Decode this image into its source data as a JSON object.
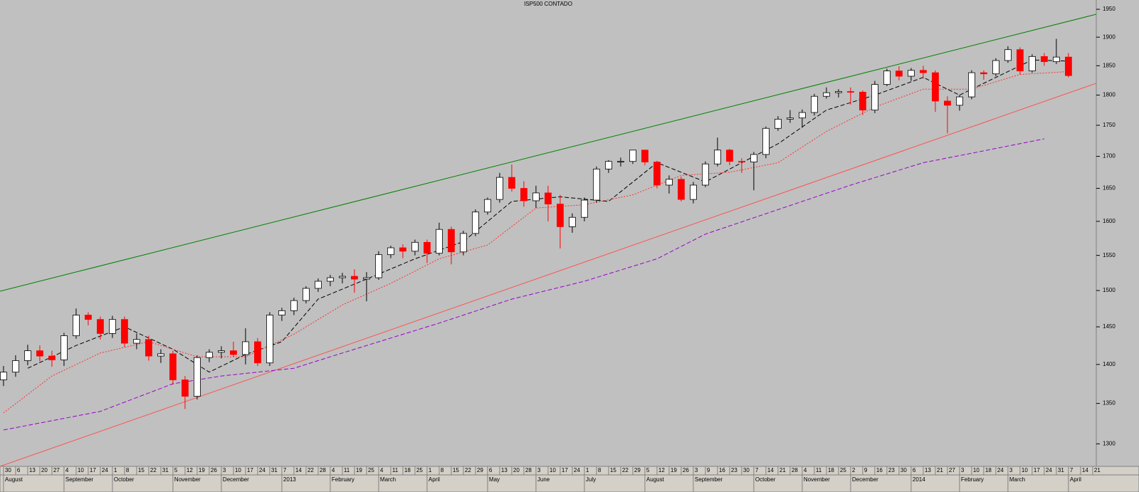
{
  "chart_data": {
    "type": "candlestick",
    "title": "ISP500 CONTADO",
    "log_scale": true,
    "xlim": [
      -0.29,
      90.3
    ],
    "ylim": [
      1273,
      1967
    ],
    "yticks": [
      1300,
      1350,
      1400,
      1450,
      1500,
      1550,
      1600,
      1650,
      1700,
      1750,
      1800,
      1850,
      1900,
      1950
    ],
    "up_color": "#ffffff",
    "down_color": "#ff0000",
    "x": [
      0,
      1,
      2,
      3,
      4,
      5,
      6,
      7,
      8,
      9,
      10,
      11,
      12,
      13,
      14,
      15,
      16,
      17,
      18,
      19,
      20,
      21,
      22,
      23,
      24,
      25,
      26,
      27,
      28,
      29,
      30,
      31,
      32,
      33,
      34,
      35,
      36,
      37,
      38,
      39,
      40,
      41,
      42,
      43,
      44,
      45,
      46,
      47,
      48,
      49,
      50,
      51,
      52,
      53,
      54,
      55,
      56,
      57,
      58,
      59,
      60,
      61,
      62,
      63,
      64,
      65,
      66,
      67,
      68,
      69,
      70,
      71,
      72,
      73,
      74,
      75,
      76,
      77,
      78,
      79,
      80,
      81,
      82,
      83,
      84,
      85,
      86,
      87,
      88
    ],
    "open": [
      1380,
      1390,
      1405,
      1418,
      1411,
      1406,
      1438,
      1466,
      1460,
      1441,
      1460,
      1428,
      1433,
      1411,
      1414,
      1380,
      1359,
      1409,
      1416,
      1418,
      1413,
      1430,
      1402,
      1466,
      1472,
      1486,
      1503,
      1513,
      1518,
      1520,
      1516,
      1518,
      1551,
      1561,
      1556,
      1569,
      1553,
      1588,
      1555,
      1582,
      1614,
      1633,
      1667,
      1650,
      1631,
      1643,
      1626,
      1592,
      1606,
      1632,
      1680,
      1692,
      1692,
      1710,
      1691,
      1655,
      1664,
      1633,
      1655,
      1688,
      1710,
      1692,
      1691,
      1703,
      1745,
      1760,
      1762,
      1771,
      1798,
      1804,
      1806,
      1805,
      1775,
      1818,
      1841,
      1832,
      1842,
      1838,
      1790,
      1783,
      1797,
      1838,
      1836,
      1859,
      1878,
      1841,
      1866,
      1857,
      1865
    ],
    "high": [
      1398,
      1412,
      1426,
      1425,
      1418,
      1442,
      1475,
      1470,
      1464,
      1465,
      1464,
      1441,
      1438,
      1420,
      1418,
      1385,
      1412,
      1420,
      1424,
      1430,
      1448,
      1435,
      1470,
      1476,
      1490,
      1506,
      1517,
      1522,
      1525,
      1530,
      1526,
      1556,
      1564,
      1566,
      1573,
      1573,
      1598,
      1592,
      1586,
      1618,
      1636,
      1674,
      1687,
      1661,
      1654,
      1654,
      1640,
      1612,
      1636,
      1684,
      1694,
      1698,
      1710,
      1710,
      1693,
      1670,
      1668,
      1660,
      1692,
      1730,
      1712,
      1697,
      1707,
      1748,
      1765,
      1775,
      1776,
      1802,
      1813,
      1810,
      1813,
      1808,
      1824,
      1845,
      1849,
      1846,
      1850,
      1842,
      1798,
      1800,
      1842,
      1842,
      1863,
      1884,
      1882,
      1870,
      1872,
      1897,
      1872
    ],
    "low": [
      1372,
      1384,
      1399,
      1404,
      1397,
      1398,
      1434,
      1452,
      1433,
      1435,
      1423,
      1420,
      1405,
      1402,
      1374,
      1343,
      1355,
      1403,
      1408,
      1410,
      1400,
      1398,
      1398,
      1458,
      1466,
      1482,
      1498,
      1506,
      1510,
      1497,
      1485,
      1515,
      1546,
      1546,
      1550,
      1539,
      1550,
      1537,
      1550,
      1578,
      1610,
      1628,
      1645,
      1622,
      1620,
      1600,
      1560,
      1583,
      1600,
      1628,
      1674,
      1684,
      1688,
      1686,
      1650,
      1642,
      1630,
      1627,
      1652,
      1684,
      1686,
      1674,
      1647,
      1697,
      1741,
      1754,
      1746,
      1766,
      1794,
      1796,
      1784,
      1767,
      1770,
      1815,
      1825,
      1824,
      1828,
      1772,
      1737,
      1774,
      1793,
      1826,
      1832,
      1855,
      1835,
      1838,
      1850,
      1853,
      1830
    ],
    "close": [
      1390,
      1405,
      1418,
      1411,
      1406,
      1438,
      1466,
      1460,
      1441,
      1460,
      1428,
      1433,
      1411,
      1414,
      1380,
      1359,
      1409,
      1416,
      1418,
      1413,
      1430,
      1402,
      1466,
      1472,
      1486,
      1503,
      1513,
      1518,
      1520,
      1516,
      1518,
      1551,
      1561,
      1556,
      1569,
      1553,
      1588,
      1555,
      1582,
      1614,
      1633,
      1667,
      1650,
      1631,
      1643,
      1626,
      1592,
      1606,
      1632,
      1680,
      1692,
      1692,
      1710,
      1691,
      1655,
      1664,
      1633,
      1655,
      1688,
      1710,
      1692,
      1691,
      1703,
      1745,
      1760,
      1762,
      1771,
      1798,
      1804,
      1806,
      1805,
      1775,
      1818,
      1841,
      1832,
      1842,
      1838,
      1790,
      1783,
      1797,
      1838,
      1836,
      1859,
      1878,
      1841,
      1866,
      1857,
      1865,
      1833
    ],
    "overlays": [
      {
        "color": "#000000",
        "style": "dashed",
        "x": [
          2,
          6,
          10,
          14,
          17,
          20,
          23,
          26,
          30,
          34,
          38,
          42,
          46,
          50,
          54,
          58,
          61,
          64,
          68,
          72,
          76,
          79,
          82,
          85,
          88
        ],
        "values": [
          1395,
          1425,
          1450,
          1420,
          1390,
          1413,
          1430,
          1488,
          1516,
          1545,
          1570,
          1630,
          1637,
          1630,
          1690,
          1660,
          1690,
          1720,
          1775,
          1800,
          1830,
          1800,
          1830,
          1860,
          1858
        ]
      },
      {
        "color": "#ff3030",
        "style": "dotted",
        "x": [
          0,
          4,
          8,
          12,
          16,
          20,
          24,
          28,
          32,
          36,
          40,
          44,
          48,
          52,
          56,
          60,
          64,
          68,
          72,
          76,
          80,
          84,
          88
        ],
        "values": [
          1338,
          1385,
          1415,
          1430,
          1410,
          1410,
          1440,
          1480,
          1510,
          1545,
          1565,
          1620,
          1625,
          1640,
          1670,
          1675,
          1690,
          1740,
          1780,
          1810,
          1810,
          1835,
          1840
        ]
      },
      {
        "color": "#9900cc",
        "style": "dashed",
        "x": [
          0,
          8,
          14,
          18,
          24,
          28,
          36,
          42,
          48,
          54,
          58,
          66,
          70,
          76,
          80,
          86
        ],
        "values": [
          1317,
          1340,
          1375,
          1385,
          1395,
          1415,
          1455,
          1488,
          1513,
          1545,
          1581,
          1630,
          1655,
          1690,
          1705,
          1728
        ]
      }
    ],
    "trendlines": [
      {
        "color": "#008000",
        "x": [
          -0.29,
          90.3
        ],
        "y": [
          1499,
          1941
        ]
      },
      {
        "color": "#ff5050",
        "x": [
          -0.29,
          90.3
        ],
        "y": [
          1273,
          1820
        ]
      }
    ],
    "xticks": [
      {
        "value": 0,
        "label": "30"
      },
      {
        "value": 1,
        "label": "6"
      },
      {
        "value": 2,
        "label": "13"
      },
      {
        "value": 3,
        "label": "20"
      },
      {
        "value": 4,
        "label": "27"
      },
      {
        "value": 5,
        "label": "4"
      },
      {
        "value": 6,
        "label": "10"
      },
      {
        "value": 7,
        "label": "17"
      },
      {
        "value": 8,
        "label": "24"
      },
      {
        "value": 9,
        "label": "1"
      },
      {
        "value": 10,
        "label": "8"
      },
      {
        "value": 11,
        "label": "15"
      },
      {
        "value": 12,
        "label": "22"
      },
      {
        "value": 13,
        "label": "31"
      },
      {
        "value": 14,
        "label": "5"
      },
      {
        "value": 15,
        "label": "12"
      },
      {
        "value": 16,
        "label": "19"
      },
      {
        "value": 17,
        "label": "26"
      },
      {
        "value": 18,
        "label": "3"
      },
      {
        "value": 19,
        "label": "10"
      },
      {
        "value": 20,
        "label": "17"
      },
      {
        "value": 21,
        "label": "24"
      },
      {
        "value": 22,
        "label": "31"
      },
      {
        "value": 23,
        "label": "7"
      },
      {
        "value": 24,
        "label": "14"
      },
      {
        "value": 25,
        "label": "22"
      },
      {
        "value": 26,
        "label": "28"
      },
      {
        "value": 27,
        "label": "4"
      },
      {
        "value": 28,
        "label": "11"
      },
      {
        "value": 29,
        "label": "19"
      },
      {
        "value": 30,
        "label": "25"
      },
      {
        "value": 31,
        "label": "4"
      },
      {
        "value": 32,
        "label": "11"
      },
      {
        "value": 33,
        "label": "18"
      },
      {
        "value": 34,
        "label": "25"
      },
      {
        "value": 35,
        "label": "1"
      },
      {
        "value": 36,
        "label": "8"
      },
      {
        "value": 37,
        "label": "15"
      },
      {
        "value": 38,
        "label": "22"
      },
      {
        "value": 39,
        "label": "29"
      },
      {
        "value": 40,
        "label": "6"
      },
      {
        "value": 41,
        "label": "13"
      },
      {
        "value": 42,
        "label": "20"
      },
      {
        "value": 43,
        "label": "28"
      },
      {
        "value": 44,
        "label": "3"
      },
      {
        "value": 45,
        "label": "10"
      },
      {
        "value": 46,
        "label": "17"
      },
      {
        "value": 47,
        "label": "24"
      },
      {
        "value": 48,
        "label": "1"
      },
      {
        "value": 49,
        "label": "8"
      },
      {
        "value": 50,
        "label": "15"
      },
      {
        "value": 51,
        "label": "22"
      },
      {
        "value": 52,
        "label": "29"
      },
      {
        "value": 53,
        "label": "5"
      },
      {
        "value": 54,
        "label": "12"
      },
      {
        "value": 55,
        "label": "19"
      },
      {
        "value": 56,
        "label": "26"
      },
      {
        "value": 57,
        "label": "3"
      },
      {
        "value": 58,
        "label": "9"
      },
      {
        "value": 59,
        "label": "16"
      },
      {
        "value": 60,
        "label": "23"
      },
      {
        "value": 61,
        "label": "30"
      },
      {
        "value": 62,
        "label": "7"
      },
      {
        "value": 63,
        "label": "14"
      },
      {
        "value": 64,
        "label": "21"
      },
      {
        "value": 65,
        "label": "28"
      },
      {
        "value": 66,
        "label": "4"
      },
      {
        "value": 67,
        "label": "11"
      },
      {
        "value": 68,
        "label": "18"
      },
      {
        "value": 69,
        "label": "25"
      },
      {
        "value": 70,
        "label": "2"
      },
      {
        "value": 71,
        "label": "9"
      },
      {
        "value": 72,
        "label": "16"
      },
      {
        "value": 73,
        "label": "23"
      },
      {
        "value": 74,
        "label": "30"
      },
      {
        "value": 75,
        "label": "6"
      },
      {
        "value": 76,
        "label": "13"
      },
      {
        "value": 77,
        "label": "21"
      },
      {
        "value": 78,
        "label": "27"
      },
      {
        "value": 79,
        "label": "3"
      },
      {
        "value": 80,
        "label": "10"
      },
      {
        "value": 81,
        "label": "18"
      },
      {
        "value": 82,
        "label": "24"
      },
      {
        "value": 83,
        "label": "3"
      },
      {
        "value": 84,
        "label": "10"
      },
      {
        "value": 85,
        "label": "17"
      },
      {
        "value": 86,
        "label": "24"
      },
      {
        "value": 87,
        "label": "31"
      },
      {
        "value": 88,
        "label": "7"
      },
      {
        "value": 89,
        "label": "14"
      },
      {
        "value": 90,
        "label": "21"
      }
    ],
    "xmonths": [
      {
        "value": 0,
        "label": "August"
      },
      {
        "value": 5,
        "label": "September"
      },
      {
        "value": 9,
        "label": "October"
      },
      {
        "value": 14,
        "label": "November"
      },
      {
        "value": 18,
        "label": "December"
      },
      {
        "value": 23,
        "label": "2013"
      },
      {
        "value": 27,
        "label": "February"
      },
      {
        "value": 31,
        "label": "March"
      },
      {
        "value": 35,
        "label": "April"
      },
      {
        "value": 40,
        "label": "May"
      },
      {
        "value": 44,
        "label": "June"
      },
      {
        "value": 48,
        "label": "July"
      },
      {
        "value": 53,
        "label": "August"
      },
      {
        "value": 57,
        "label": "September"
      },
      {
        "value": 62,
        "label": "October"
      },
      {
        "value": 66,
        "label": "November"
      },
      {
        "value": 70,
        "label": "December"
      },
      {
        "value": 75,
        "label": "2014"
      },
      {
        "value": 79,
        "label": "February"
      },
      {
        "value": 83,
        "label": "March"
      },
      {
        "value": 88,
        "label": "April"
      }
    ]
  }
}
